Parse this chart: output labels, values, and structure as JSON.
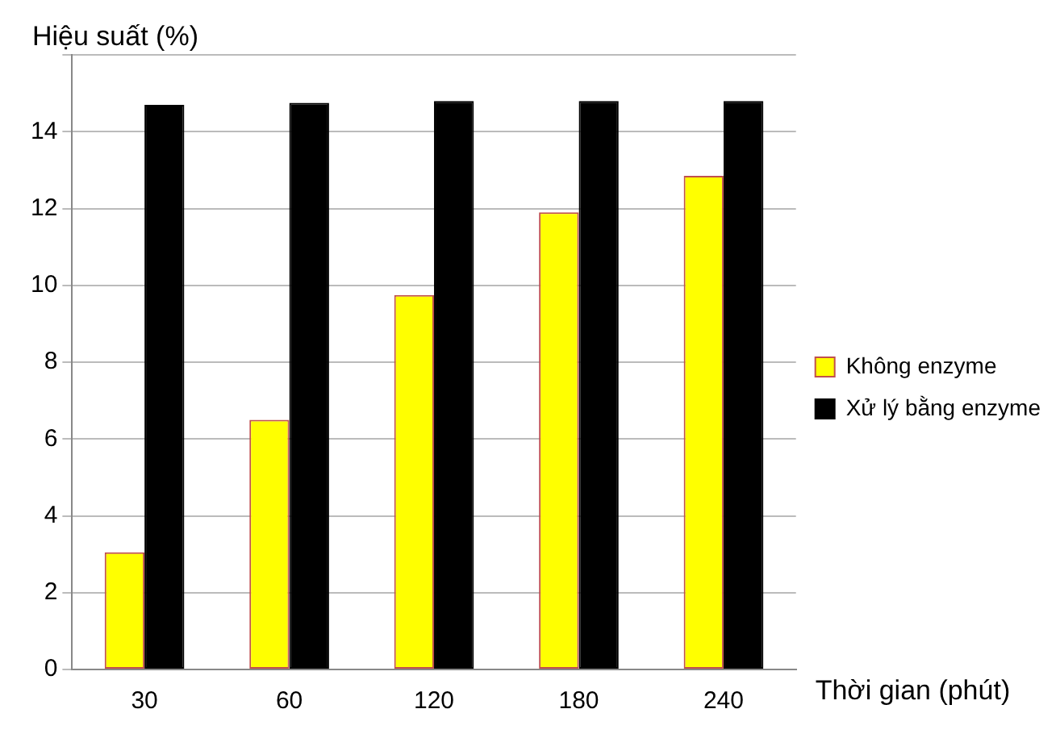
{
  "chart_data": {
    "type": "bar",
    "ylabel": "Hiệu suất (%)",
    "xlabel": "Thời gian (phút)",
    "categories": [
      "30",
      "60",
      "120",
      "180",
      "240"
    ],
    "series": [
      {
        "name": "Không enzyme",
        "color": "#ffff00",
        "values": [
          3.05,
          6.5,
          9.75,
          11.9,
          12.85
        ]
      },
      {
        "name": "Xử lý bằng enzyme",
        "color": "#000000",
        "values": [
          14.7,
          14.75,
          14.8,
          14.8,
          14.8
        ]
      }
    ],
    "ylim": [
      0,
      16
    ],
    "yticks": [
      0,
      2,
      4,
      6,
      8,
      10,
      12,
      14,
      {
        "value": 16,
        "label": null
      }
    ],
    "grid": "y",
    "legend": "right"
  }
}
